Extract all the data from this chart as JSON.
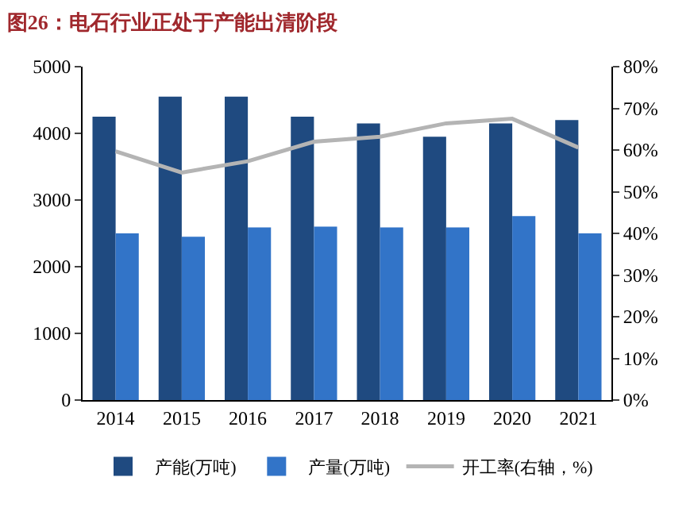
{
  "chart_data": {
    "type": "bar",
    "title": "图26：电石行业正处于产能出清阶段",
    "categories": [
      "2014",
      "2015",
      "2016",
      "2017",
      "2018",
      "2019",
      "2020",
      "2021"
    ],
    "series": [
      {
        "name": "产能(万吨)",
        "color": "#1f4a80",
        "values": [
          4250,
          4550,
          4550,
          4250,
          4150,
          3950,
          4150,
          4200
        ]
      },
      {
        "name": "产量(万吨)",
        "color": "#3274c8",
        "values": [
          2500,
          2450,
          2590,
          2600,
          2590,
          2590,
          2760,
          2500
        ]
      },
      {
        "name": "开工率(右轴，%)",
        "type": "line",
        "axis": "y2",
        "color": "#b4b4b4",
        "values": [
          59.7,
          54.6,
          57.3,
          62,
          63.2,
          66.4,
          67.5,
          60.6
        ]
      }
    ],
    "ylim": [
      0,
      5000
    ],
    "yticks": [
      0,
      1000,
      2000,
      3000,
      4000,
      5000
    ],
    "y2lim": [
      0,
      80
    ],
    "y2ticks": [
      {
        "value": 0,
        "label": "0%"
      },
      {
        "value": 10,
        "label": "10%"
      },
      {
        "value": 20,
        "label": "20%"
      },
      {
        "value": 30,
        "label": "30%"
      },
      {
        "value": 40,
        "label": "40%"
      },
      {
        "value": 50,
        "label": "50%"
      },
      {
        "value": 60,
        "label": "60%"
      },
      {
        "value": 70,
        "label": "70%"
      },
      {
        "value": 80,
        "label": "80%"
      }
    ],
    "legend": "bottom",
    "marker": "none",
    "line_style": "solid"
  }
}
